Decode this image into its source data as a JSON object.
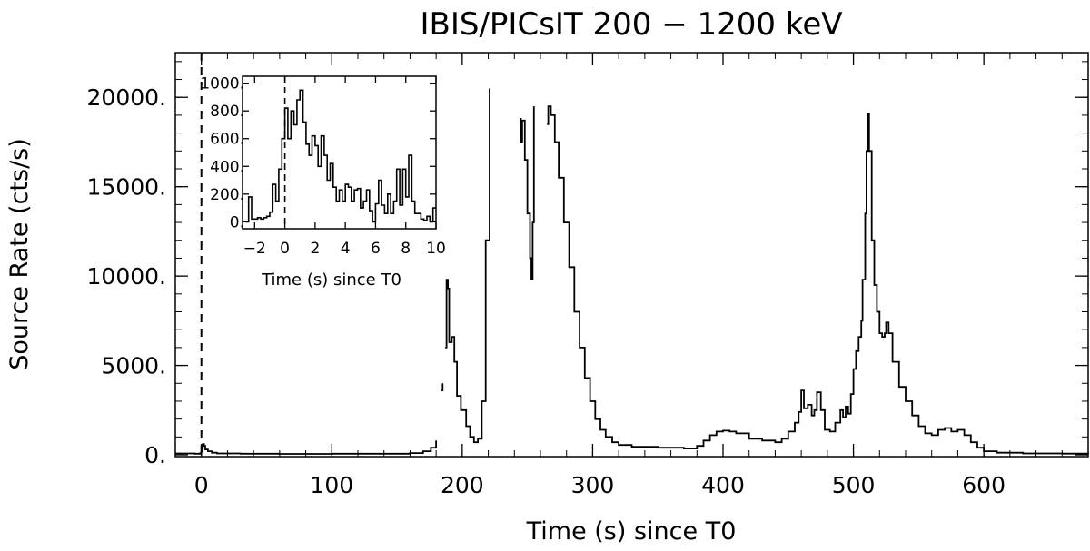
{
  "chart_data": [
    {
      "type": "line",
      "title": "IBIS/PICsIT 200 − 1200 keV",
      "xlabel": "Time (s) since T0",
      "ylabel": "Source Rate (cts/s)",
      "xlim": [
        -20,
        680
      ],
      "ylim": [
        -100,
        22500
      ],
      "x_ticks": [
        0,
        100,
        200,
        300,
        400,
        500,
        600
      ],
      "x_tick_labels": [
        "0",
        "100",
        "200",
        "300",
        "400",
        "500",
        "600"
      ],
      "y_ticks": [
        0,
        5000,
        10000,
        15000,
        20000
      ],
      "y_tick_labels": [
        "0.",
        "5000.",
        "10000.",
        "15000.",
        "20000."
      ],
      "grid": false,
      "legend": "none",
      "reference_line": {
        "x": 0,
        "style": "dashed"
      },
      "series": [
        {
          "style": "histogram-step",
          "segments": [
            [
              [
                -20,
                80
              ],
              [
                -5,
                60
              ],
              [
                -1,
                90
              ],
              [
                0,
                200
              ],
              [
                1,
                600
              ],
              [
                2,
                500
              ],
              [
                3,
                300
              ],
              [
                5,
                200
              ],
              [
                8,
                120
              ],
              [
                12,
                80
              ],
              [
                30,
                60
              ],
              [
                60,
                50
              ],
              [
                100,
                60
              ],
              [
                130,
                60
              ],
              [
                160,
                100
              ],
              [
                170,
                200
              ],
              [
                176,
                400
              ],
              [
                180,
                800
              ]
            ],
            [
              [
                184,
                3600
              ],
              [
                185,
                4000
              ]
            ],
            [
              [
                187,
                6000
              ],
              [
                188,
                9800
              ],
              [
                189,
                9300
              ],
              [
                190,
                6300
              ],
              [
                192,
                6600
              ],
              [
                194,
                5200
              ],
              [
                196,
                3300
              ],
              [
                199,
                2500
              ],
              [
                203,
                1600
              ],
              [
                206,
                1000
              ],
              [
                209,
                700
              ],
              [
                212,
                900
              ],
              [
                215,
                3000
              ],
              [
                218,
                12000
              ],
              [
                221,
                20500
              ]
            ],
            [
              [
                244,
                18800
              ],
              [
                245,
                17500
              ],
              [
                246,
                18700
              ],
              [
                248,
                16500
              ],
              [
                250,
                13500
              ],
              [
                252,
                11000
              ],
              [
                253,
                9800
              ],
              [
                254,
                13000
              ],
              [
                255,
                19500
              ]
            ],
            [
              [
                265,
                18500
              ],
              [
                266,
                19500
              ],
              [
                268,
                19000
              ],
              [
                271,
                17500
              ],
              [
                274,
                15500
              ],
              [
                278,
                13000
              ],
              [
                282,
                10500
              ],
              [
                286,
                8000
              ],
              [
                290,
                6000
              ],
              [
                294,
                4300
              ],
              [
                298,
                3000
              ],
              [
                302,
                2000
              ],
              [
                306,
                1400
              ],
              [
                310,
                1000
              ],
              [
                315,
                700
              ],
              [
                320,
                550
              ],
              [
                330,
                450
              ],
              [
                350,
                400
              ],
              [
                370,
                350
              ],
              [
                380,
                500
              ],
              [
                385,
                800
              ],
              [
                390,
                1100
              ],
              [
                395,
                1300
              ],
              [
                400,
                1350
              ],
              [
                405,
                1300
              ],
              [
                410,
                1200
              ],
              [
                420,
                900
              ],
              [
                430,
                800
              ],
              [
                440,
                700
              ],
              [
                445,
                900
              ],
              [
                450,
                1300
              ],
              [
                455,
                1800
              ],
              [
                458,
                2400
              ],
              [
                460,
                3600
              ],
              [
                462,
                2600
              ],
              [
                465,
                2800
              ],
              [
                468,
                2200
              ],
              [
                470,
                2500
              ],
              [
                472,
                3500
              ],
              [
                475,
                2500
              ],
              [
                478,
                1400
              ],
              [
                482,
                1300
              ],
              [
                486,
                1800
              ],
              [
                490,
                2500
              ],
              [
                492,
                2100
              ],
              [
                494,
                2700
              ],
              [
                496,
                2300
              ],
              [
                498,
                3400
              ],
              [
                500,
                4800
              ],
              [
                502,
                5800
              ],
              [
                504,
                6600
              ],
              [
                506,
                7500
              ],
              [
                507,
                9800
              ],
              [
                509,
                13500
              ],
              [
                510,
                17000
              ],
              [
                511,
                19100
              ],
              [
                512,
                17000
              ],
              [
                514,
                12000
              ],
              [
                516,
                9500
              ],
              [
                518,
                8000
              ],
              [
                520,
                6800
              ],
              [
                522,
                6600
              ],
              [
                524,
                6800
              ],
              [
                525,
                7400
              ],
              [
                527,
                6800
              ],
              [
                530,
                5200
              ],
              [
                535,
                3800
              ],
              [
                540,
                3000
              ],
              [
                545,
                2200
              ],
              [
                550,
                1600
              ],
              [
                555,
                1200
              ],
              [
                560,
                1100
              ],
              [
                565,
                1400
              ],
              [
                570,
                1500
              ],
              [
                575,
                1300
              ],
              [
                580,
                1400
              ],
              [
                585,
                1100
              ],
              [
                590,
                700
              ],
              [
                595,
                400
              ],
              [
                600,
                200
              ],
              [
                610,
                120
              ],
              [
                630,
                80
              ],
              [
                660,
                70
              ],
              [
                680,
                60
              ]
            ]
          ]
        }
      ]
    },
    {
      "type": "line",
      "title": "",
      "xlabel": "Time (s) since T0",
      "ylabel": "",
      "xlim": [
        -2.8,
        10
      ],
      "ylim": [
        -50,
        1050
      ],
      "x_ticks": [
        -2,
        0,
        2,
        4,
        6,
        8,
        10
      ],
      "x_tick_labels": [
        "−2",
        "0",
        "2",
        "4",
        "6",
        "8",
        "10"
      ],
      "y_ticks": [
        0,
        200,
        400,
        600,
        800,
        1000
      ],
      "y_tick_labels": [
        "0.",
        "200.",
        "400.",
        "600.",
        "800.",
        "1000."
      ],
      "grid": false,
      "legend": "none",
      "reference_line": {
        "x": 0,
        "style": "dashed"
      },
      "series": [
        {
          "style": "histogram-step",
          "bin_width": 0.2,
          "x": [
            -2.6,
            -2.4,
            -2.2,
            -2.0,
            -1.8,
            -1.6,
            -1.4,
            -1.2,
            -1.0,
            -0.8,
            -0.6,
            -0.4,
            -0.2,
            0.0,
            0.2,
            0.4,
            0.6,
            0.8,
            1.0,
            1.2,
            1.4,
            1.6,
            1.8,
            2.0,
            2.2,
            2.4,
            2.6,
            2.8,
            3.0,
            3.2,
            3.4,
            3.6,
            3.8,
            4.0,
            4.2,
            4.4,
            4.6,
            4.8,
            5.0,
            5.2,
            5.4,
            5.6,
            5.8,
            6.0,
            6.2,
            6.4,
            6.6,
            6.8,
            7.0,
            7.2,
            7.4,
            7.6,
            7.8,
            8.0,
            8.2,
            8.4,
            8.6,
            8.8,
            9.0,
            9.2,
            9.4,
            9.6,
            9.8
          ],
          "values": [
            0,
            180,
            20,
            20,
            30,
            20,
            30,
            40,
            70,
            270,
            150,
            380,
            600,
            820,
            600,
            800,
            700,
            880,
            950,
            720,
            560,
            480,
            620,
            550,
            400,
            620,
            480,
            300,
            420,
            250,
            150,
            230,
            150,
            270,
            250,
            150,
            230,
            240,
            100,
            150,
            230,
            80,
            0,
            130,
            300,
            120,
            60,
            200,
            60,
            150,
            380,
            120,
            380,
            180,
            480,
            150,
            60,
            60,
            20,
            10,
            40,
            0,
            100
          ]
        }
      ]
    }
  ]
}
